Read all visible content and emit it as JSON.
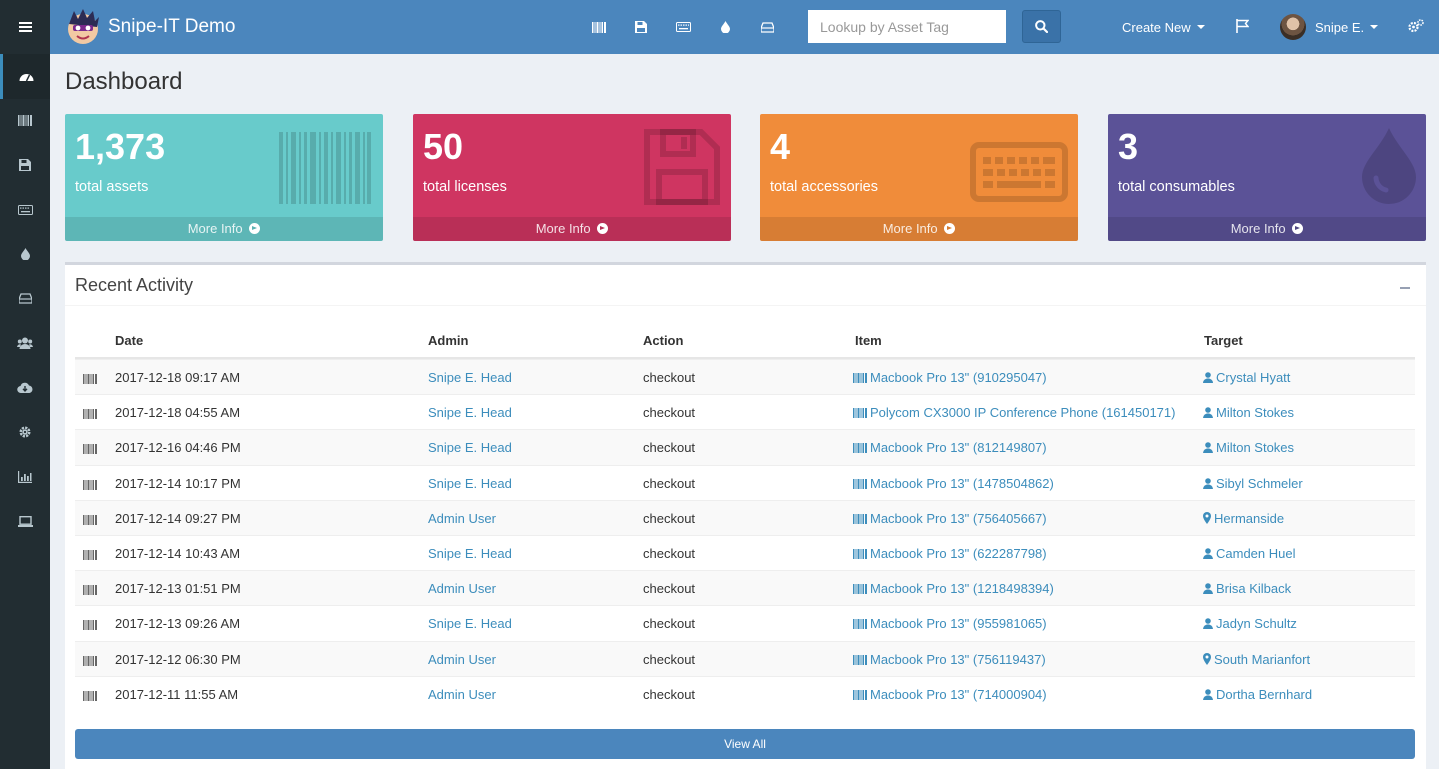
{
  "header": {
    "brand": "Snipe-IT Demo",
    "search_placeholder": "Lookup by Asset Tag",
    "create_new_label": "Create New",
    "user_name": "Snipe E.",
    "nav_icons": [
      "barcode-icon",
      "floppy-icon",
      "keyboard-icon",
      "tint-icon",
      "hdd-icon"
    ]
  },
  "sidebar": {
    "items": [
      "dashboard-icon",
      "barcode-icon",
      "floppy-icon",
      "keyboard-icon",
      "tint-icon",
      "hdd-icon",
      "users-icon",
      "cloud-download-icon",
      "cog-icon",
      "bar-chart-icon",
      "laptop-icon"
    ]
  },
  "page": {
    "title": "Dashboard"
  },
  "stats": [
    {
      "value": "1,373",
      "label": "total assets",
      "more": "More Info",
      "color": "#68cbcb"
    },
    {
      "value": "50",
      "label": "total licenses",
      "more": "More Info",
      "color": "#cf3561"
    },
    {
      "value": "4",
      "label": "total accessories",
      "more": "More Info",
      "color": "#f08c3a"
    },
    {
      "value": "3",
      "label": "total consumables",
      "more": "More Info",
      "color": "#5b5297"
    }
  ],
  "activity": {
    "title": "Recent Activity",
    "columns": {
      "date": "Date",
      "admin": "Admin",
      "action": "Action",
      "item": "Item",
      "target": "Target"
    },
    "rows": [
      {
        "date": "2017-12-18 09:17 AM",
        "admin": "Snipe E. Head",
        "action": "checkout",
        "item": "Macbook Pro 13\" (910295047)",
        "target": "Crystal Hyatt",
        "target_type": "user"
      },
      {
        "date": "2017-12-18 04:55 AM",
        "admin": "Snipe E. Head",
        "action": "checkout",
        "item": "Polycom CX3000 IP Conference Phone (161450171)",
        "target": "Milton Stokes",
        "target_type": "user"
      },
      {
        "date": "2017-12-16 04:46 PM",
        "admin": "Snipe E. Head",
        "action": "checkout",
        "item": "Macbook Pro 13\" (812149807)",
        "target": "Milton Stokes",
        "target_type": "user"
      },
      {
        "date": "2017-12-14 10:17 PM",
        "admin": "Snipe E. Head",
        "action": "checkout",
        "item": "Macbook Pro 13\" (1478504862)",
        "target": "Sibyl Schmeler",
        "target_type": "user"
      },
      {
        "date": "2017-12-14 09:27 PM",
        "admin": "Admin User",
        "action": "checkout",
        "item": "Macbook Pro 13\" (756405667)",
        "target": "Hermanside",
        "target_type": "location"
      },
      {
        "date": "2017-12-14 10:43 AM",
        "admin": "Snipe E. Head",
        "action": "checkout",
        "item": "Macbook Pro 13\" (622287798)",
        "target": "Camden Huel",
        "target_type": "user"
      },
      {
        "date": "2017-12-13 01:51 PM",
        "admin": "Admin User",
        "action": "checkout",
        "item": "Macbook Pro 13\" (1218498394)",
        "target": "Brisa Kilback",
        "target_type": "user"
      },
      {
        "date": "2017-12-13 09:26 AM",
        "admin": "Snipe E. Head",
        "action": "checkout",
        "item": "Macbook Pro 13\" (955981065)",
        "target": "Jadyn Schultz",
        "target_type": "user"
      },
      {
        "date": "2017-12-12 06:30 PM",
        "admin": "Admin User",
        "action": "checkout",
        "item": "Macbook Pro 13\" (756119437)",
        "target": "South Marianfort",
        "target_type": "location"
      },
      {
        "date": "2017-12-11 11:55 AM",
        "admin": "Admin User",
        "action": "checkout",
        "item": "Macbook Pro 13\" (714000904)",
        "target": "Dortha Bernhard",
        "target_type": "user"
      }
    ],
    "view_all": "View All"
  },
  "colors": {
    "header": "#4b86bd",
    "sidebar": "#222d32",
    "link": "#3c8dbc"
  }
}
